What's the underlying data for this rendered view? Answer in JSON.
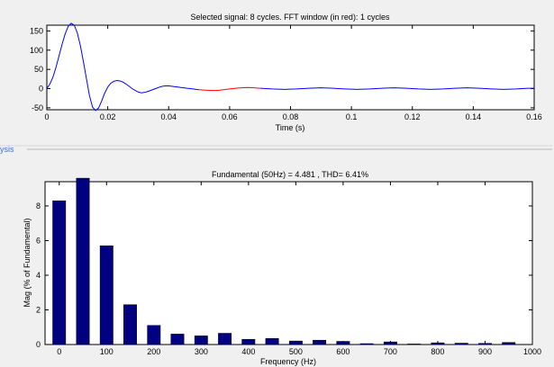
{
  "panel": {
    "group_label": "ysis"
  },
  "chart_data": [
    {
      "type": "line",
      "title": "Selected signal: 8 cycles. FFT window (in red): 1 cycles",
      "xlabel": "Time (s)",
      "ylabel": "",
      "xlim": [
        0,
        0.16
      ],
      "ylim": [
        -55,
        165
      ],
      "x_ticks": [
        0.02,
        0.04,
        0.06,
        0.08,
        0.1,
        0.12,
        0.14,
        0.16
      ],
      "y_ticks": [
        -50,
        0,
        50,
        100,
        150
      ],
      "grid": false,
      "series": [
        {
          "color": "#0000ff",
          "x": [
            0,
            0.001,
            0.002,
            0.003,
            0.004,
            0.005,
            0.006,
            0.007,
            0.008,
            0.009,
            0.01,
            0.011,
            0.012,
            0.013,
            0.014,
            0.015,
            0.016,
            0.017,
            0.018,
            0.019,
            0.02,
            0.021,
            0.022,
            0.023,
            0.024,
            0.025,
            0.026,
            0.027,
            0.028,
            0.029,
            0.03,
            0.031,
            0.032,
            0.033,
            0.034,
            0.035,
            0.036,
            0.037,
            0.038,
            0.039,
            0.04,
            0.041,
            0.042,
            0.043,
            0.044,
            0.045,
            0.046,
            0.047,
            0.048,
            0.049,
            0.05
          ],
          "y": [
            0,
            12,
            30,
            55,
            85,
            115,
            142,
            162,
            170,
            165,
            145,
            112,
            70,
            25,
            -18,
            -48,
            -57,
            -50,
            -32,
            -12,
            4,
            14,
            19,
            21,
            20,
            17,
            12,
            6,
            0,
            -5,
            -9,
            -11,
            -10,
            -8,
            -5,
            -2,
            1,
            4,
            6,
            7,
            7,
            6,
            5,
            4,
            3,
            2,
            1,
            0,
            -1,
            -2,
            -3
          ]
        },
        {
          "color": "#ff0000",
          "x": [
            0.05,
            0.052,
            0.054,
            0.056,
            0.058,
            0.06,
            0.062,
            0.064,
            0.066,
            0.068,
            0.07
          ],
          "y": [
            -3,
            -4,
            -5,
            -5,
            -3,
            -1,
            1,
            2,
            3,
            2,
            1
          ]
        },
        {
          "color": "#0000ff",
          "x": [
            0.07,
            0.074,
            0.078,
            0.082,
            0.086,
            0.09,
            0.094,
            0.098,
            0.102,
            0.106,
            0.11,
            0.114,
            0.118,
            0.122,
            0.126,
            0.13,
            0.134,
            0.138,
            0.142,
            0.146,
            0.15,
            0.154,
            0.158,
            0.16
          ],
          "y": [
            1,
            -1,
            -2,
            -1,
            1,
            2,
            1,
            -1,
            -2,
            -1,
            1,
            2,
            1,
            -1,
            -2,
            -1,
            1,
            2,
            1,
            -1,
            -2,
            -1,
            1,
            1
          ]
        }
      ]
    },
    {
      "type": "bar",
      "title": "Fundamental (50Hz) = 4.481 , THD= 6.41%",
      "xlabel": "Frequency (Hz)",
      "ylabel": "Mag (% of Fundamental)",
      "xlim": [
        -30,
        1000
      ],
      "ylim": [
        0,
        9.4
      ],
      "x_ticks": [
        0,
        100,
        200,
        300,
        400,
        500,
        600,
        700,
        800,
        900,
        1000
      ],
      "y_ticks": [
        0,
        2,
        4,
        6,
        8
      ],
      "grid": false,
      "bar_color": "#000080",
      "x": [
        0,
        50,
        100,
        150,
        200,
        250,
        300,
        350,
        400,
        450,
        500,
        550,
        600,
        650,
        700,
        750,
        800,
        850,
        900,
        950
      ],
      "values": [
        8.3,
        9.6,
        5.7,
        2.3,
        1.1,
        0.6,
        0.5,
        0.65,
        0.3,
        0.35,
        0.2,
        0.25,
        0.18,
        0.05,
        0.15,
        0.03,
        0.1,
        0.08,
        0.07,
        0.12
      ]
    }
  ]
}
